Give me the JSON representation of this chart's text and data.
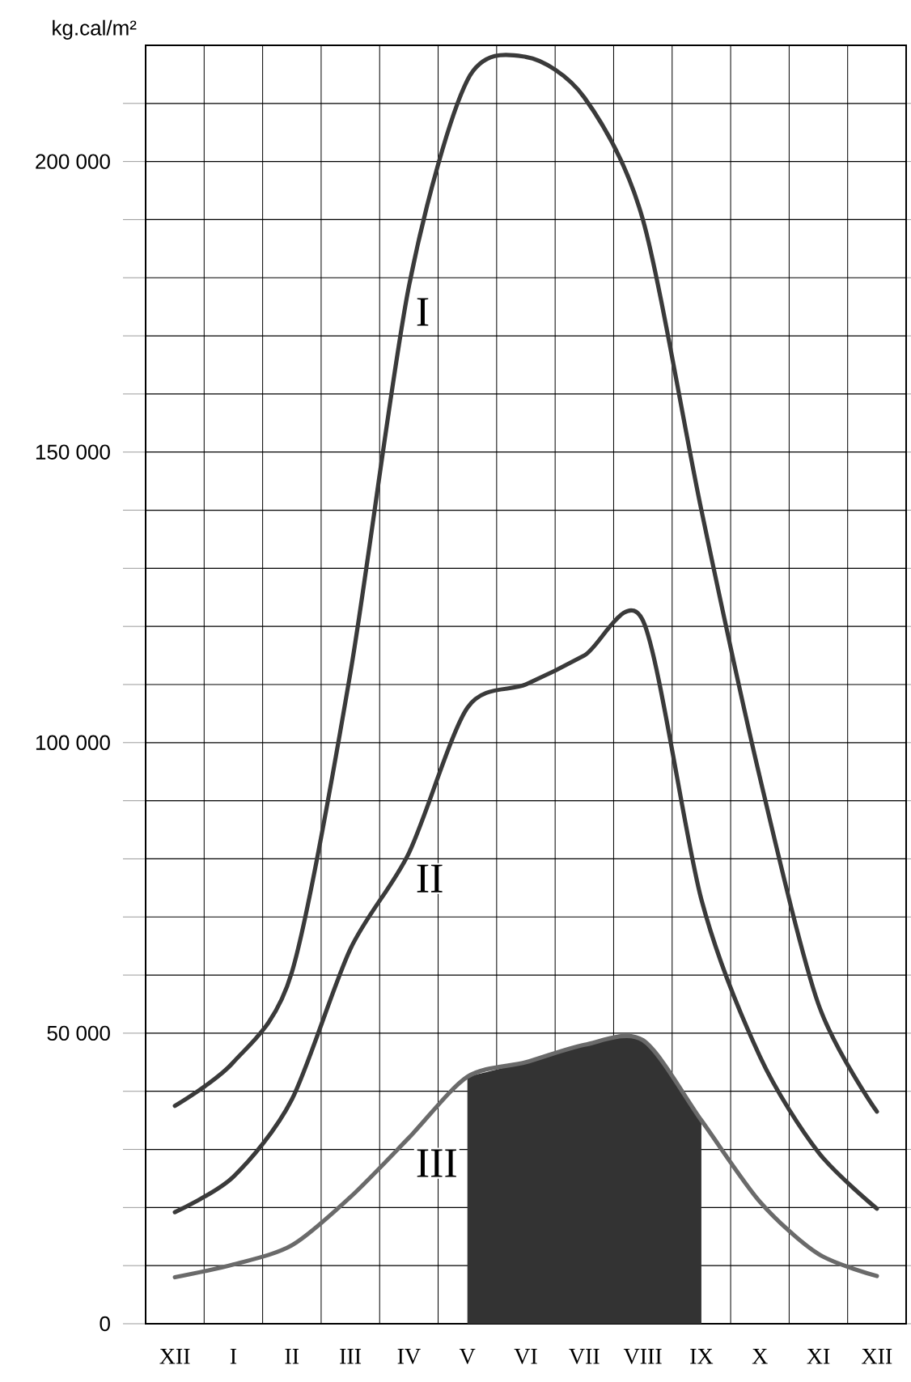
{
  "chart_data": {
    "type": "line",
    "ylabel": "kg.cal/m²",
    "categories": [
      "XII",
      "I",
      "II",
      "III",
      "IV",
      "V",
      "VI",
      "VII",
      "VIII",
      "IX",
      "X",
      "XI",
      "XII"
    ],
    "series": [
      {
        "name": "I",
        "color": "#3a3a3a",
        "values": [
          37500,
          45000,
          60500,
          112000,
          178500,
          214000,
          218000,
          211000,
          190000,
          140000,
          94000,
          55000,
          36500
        ]
      },
      {
        "name": "II",
        "color": "#3a3a3a",
        "values": [
          19200,
          25300,
          38600,
          64500,
          81000,
          106000,
          110000,
          115000,
          121000,
          73000,
          46000,
          29500,
          19800
        ]
      },
      {
        "name": "III",
        "color": "#6a6a6a",
        "values": [
          8000,
          10200,
          13500,
          21800,
          32000,
          42500,
          45000,
          48000,
          48800,
          35000,
          21000,
          12000,
          8200
        ]
      },
      {
        "type": "area",
        "color": "#333333",
        "values": [
          null,
          null,
          null,
          null,
          null,
          42500,
          45000,
          48000,
          48800,
          35000,
          null,
          null,
          null
        ]
      }
    ],
    "ylim": [
      0,
      220000
    ],
    "yticks": [
      0,
      {
        "value": 10000,
        "label": null
      },
      {
        "value": 20000,
        "label": null
      },
      {
        "value": 30000,
        "label": null
      },
      {
        "value": 40000,
        "label": null
      },
      {
        "value": 50000,
        "label": "50 000"
      },
      {
        "value": 60000,
        "label": null
      },
      {
        "value": 70000,
        "label": null
      },
      {
        "value": 80000,
        "label": null
      },
      {
        "value": 90000,
        "label": null
      },
      {
        "value": 100000,
        "label": "100 000"
      },
      {
        "value": 110000,
        "label": null
      },
      {
        "value": 120000,
        "label": null
      },
      {
        "value": 130000,
        "label": null
      },
      {
        "value": 140000,
        "label": null
      },
      {
        "value": 150000,
        "label": "150 000"
      },
      {
        "value": 160000,
        "label": null
      },
      {
        "value": 170000,
        "label": null
      },
      {
        "value": 180000,
        "label": null
      },
      {
        "value": 190000,
        "label": null
      },
      {
        "value": 200000,
        "label": "200 000"
      },
      {
        "value": 210000,
        "label": null
      }
    ],
    "grid": true
  }
}
